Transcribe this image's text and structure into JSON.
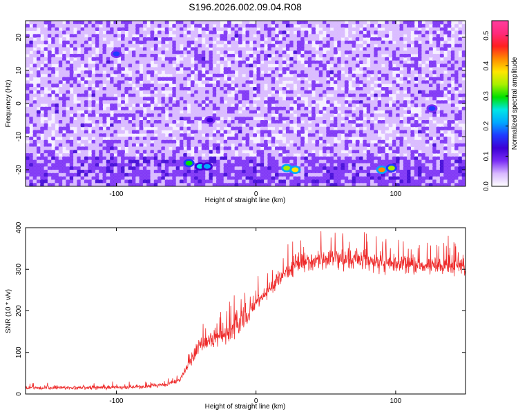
{
  "title": "S196.2026.002.09.04.R08",
  "chart_data": [
    {
      "type": "heatmap",
      "xlabel": "Height of straight line (km)",
      "ylabel": "Frequency (Hz)",
      "xlim": [
        -165,
        150
      ],
      "ylim": [
        -25,
        25
      ],
      "xticks": [
        -100,
        0,
        100
      ],
      "yticks": [
        -20,
        -10,
        0,
        10,
        20
      ],
      "colorbar": {
        "label": "Normalized spectral amplitude",
        "range": [
          0,
          0.55
        ],
        "ticks": [
          0.0,
          0.1,
          0.2,
          0.3,
          0.4,
          0.5
        ],
        "tick_labels": [
          "0.0",
          "0.1",
          "0.2",
          "0.3",
          "0.4",
          "0.5"
        ],
        "colors": [
          "#ffffff",
          "#d8b8ff",
          "#7a2df5",
          "#3d00d6",
          "#1f3bff",
          "#00a8ff",
          "#00e6e6",
          "#00e000",
          "#a8f000",
          "#ffe600",
          "#ff8c00",
          "#ff2020",
          "#ff2a7a",
          "#ff3d9e"
        ]
      },
      "notable_features": [
        {
          "x": -48,
          "y": -18,
          "value": 0.3
        },
        {
          "x": -40,
          "y": -19,
          "value": 0.25
        },
        {
          "x": -35,
          "y": -19,
          "value": 0.22
        },
        {
          "x": 22,
          "y": -19.5,
          "value": 0.35
        },
        {
          "x": 28,
          "y": -20,
          "value": 0.4
        },
        {
          "x": 90,
          "y": -20,
          "value": 0.42
        },
        {
          "x": 97,
          "y": -19.5,
          "value": 0.33
        },
        {
          "x": -100,
          "y": 15,
          "value": 0.15
        },
        {
          "x": 126,
          "y": -1.5,
          "value": 0.15
        },
        {
          "x": -33,
          "y": -5,
          "value": 0.12
        }
      ]
    },
    {
      "type": "line",
      "xlabel": "Height of straight line (km)",
      "ylabel": "SNR (10 * v/v)",
      "xlim": [
        -165,
        150
      ],
      "ylim": [
        0,
        400
      ],
      "xticks": [
        -100,
        0,
        100
      ],
      "yticks": [
        0,
        100,
        200,
        300,
        400
      ],
      "series": [
        {
          "name": "SNR",
          "color": "#ee2b2b",
          "x": [
            -165,
            -140,
            -100,
            -80,
            -65,
            -55,
            -50,
            -45,
            -40,
            -30,
            -20,
            -10,
            0,
            10,
            20,
            30,
            50,
            70,
            90,
            110,
            130,
            150
          ],
          "y": [
            15,
            15,
            16,
            18,
            22,
            32,
            60,
            90,
            120,
            135,
            150,
            175,
            220,
            255,
            290,
            315,
            325,
            325,
            315,
            310,
            305,
            310
          ]
        }
      ]
    }
  ]
}
